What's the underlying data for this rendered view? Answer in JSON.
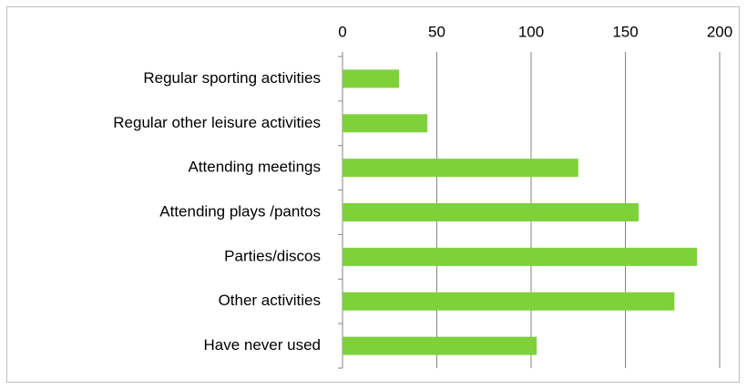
{
  "chart_data": {
    "type": "bar",
    "orientation": "horizontal",
    "categories": [
      "Regular sporting activities",
      "Regular other leisure activities",
      "Attending meetings",
      "Attending plays /pantos",
      "Parties/discos",
      "Other activities",
      "Have never used"
    ],
    "values": [
      30,
      45,
      125,
      157,
      188,
      176,
      103
    ],
    "color": "#7ed13b",
    "xlim": [
      0,
      200
    ],
    "xticks": [
      0,
      50,
      100,
      150,
      200
    ],
    "grid": true
  }
}
